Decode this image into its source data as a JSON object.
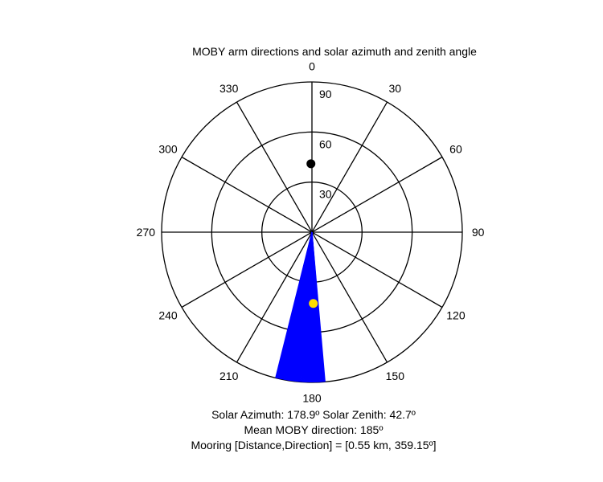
{
  "chart_data": {
    "type": "polar",
    "title": "MOBY arm directions and solar azimuth and zenith angle",
    "angle_ticks": [
      "0",
      "30",
      "60",
      "90",
      "120",
      "150",
      "180",
      "210",
      "240",
      "270",
      "300",
      "330"
    ],
    "radial_ticks": [
      "30",
      "60",
      "90"
    ],
    "rmax": 90,
    "arm_direction_range_deg": [
      175,
      194
    ],
    "arm_fan_color": "#0000ff",
    "solar_point": {
      "azimuth_deg": 178.9,
      "zenith_deg": 42.7,
      "color": "#ffdd00"
    },
    "mooring_point": {
      "direction_deg": 359.15,
      "radial": 41,
      "color": "#000000"
    },
    "grid_color": "#000000"
  },
  "info": {
    "line1": "Solar Azimuth: 178.9º   Solar Zenith: 42.7º",
    "line2": "Mean MOBY direction: 185º",
    "line3": "Mooring [Distance,Direction] = [0.55 km, 359.15º]"
  }
}
